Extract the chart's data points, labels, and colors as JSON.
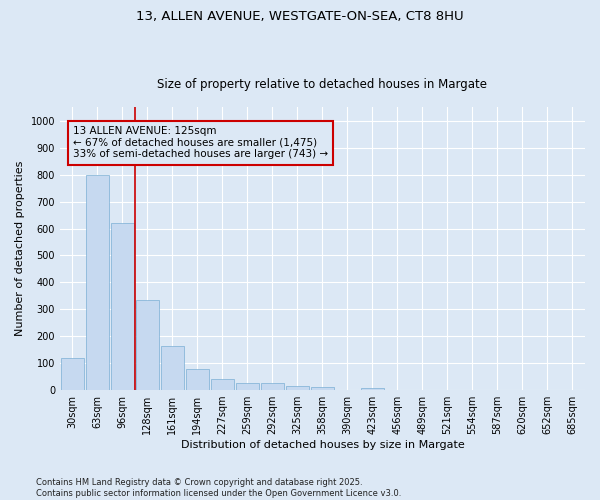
{
  "title": "13, ALLEN AVENUE, WESTGATE-ON-SEA, CT8 8HU",
  "subtitle": "Size of property relative to detached houses in Margate",
  "xlabel": "Distribution of detached houses by size in Margate",
  "ylabel": "Number of detached properties",
  "categories": [
    "30sqm",
    "63sqm",
    "96sqm",
    "128sqm",
    "161sqm",
    "194sqm",
    "227sqm",
    "259sqm",
    "292sqm",
    "325sqm",
    "358sqm",
    "390sqm",
    "423sqm",
    "456sqm",
    "489sqm",
    "521sqm",
    "554sqm",
    "587sqm",
    "620sqm",
    "652sqm",
    "685sqm"
  ],
  "values": [
    120,
    800,
    620,
    335,
    165,
    80,
    40,
    28,
    25,
    15,
    10,
    0,
    8,
    0,
    0,
    0,
    0,
    0,
    0,
    0,
    0
  ],
  "bar_color": "#c6d9f0",
  "bar_edgecolor": "#7bafd4",
  "vline_x_index": 3,
  "vline_color": "#cc0000",
  "annotation_text": "13 ALLEN AVENUE: 125sqm\n← 67% of detached houses are smaller (1,475)\n33% of semi-detached houses are larger (743) →",
  "annotation_box_color": "#cc0000",
  "ylim": [
    0,
    1050
  ],
  "yticks": [
    0,
    100,
    200,
    300,
    400,
    500,
    600,
    700,
    800,
    900,
    1000
  ],
  "background_color": "#dce8f5",
  "grid_color": "#ffffff",
  "footer": "Contains HM Land Registry data © Crown copyright and database right 2025.\nContains public sector information licensed under the Open Government Licence v3.0.",
  "title_fontsize": 9.5,
  "subtitle_fontsize": 8.5,
  "xlabel_fontsize": 8,
  "ylabel_fontsize": 8,
  "tick_fontsize": 7,
  "annotation_fontsize": 7.5,
  "footer_fontsize": 6
}
